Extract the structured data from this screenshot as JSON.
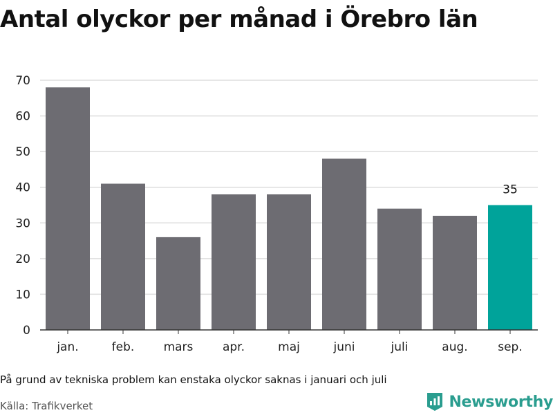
{
  "title": "Antal olyckor per månad i Örebro län",
  "footnote": "På grund av tekniska problem kan enstaka olyckor saknas i januari och juli",
  "source": "Källa: Trafikverket",
  "brand": {
    "name": "Newsworthy",
    "icon": "newsworthy-logo-icon",
    "color": "#2a9d8f"
  },
  "colors": {
    "bar": "#6d6c72",
    "highlight": "#00a39a",
    "grid": "#dddddd",
    "axis": "#333333"
  },
  "chart_data": {
    "type": "bar",
    "categories": [
      "jan.",
      "feb.",
      "mars",
      "apr.",
      "maj",
      "juni",
      "juli",
      "aug.",
      "sep."
    ],
    "values": [
      68,
      41,
      26,
      38,
      38,
      48,
      34,
      32,
      35
    ],
    "highlight_index": 8,
    "data_labels": {
      "8": "35"
    },
    "ylim": [
      0,
      70
    ],
    "yticks": [
      0,
      10,
      20,
      30,
      40,
      50,
      60,
      70
    ],
    "grid": true,
    "xlabel": "",
    "ylabel": ""
  }
}
